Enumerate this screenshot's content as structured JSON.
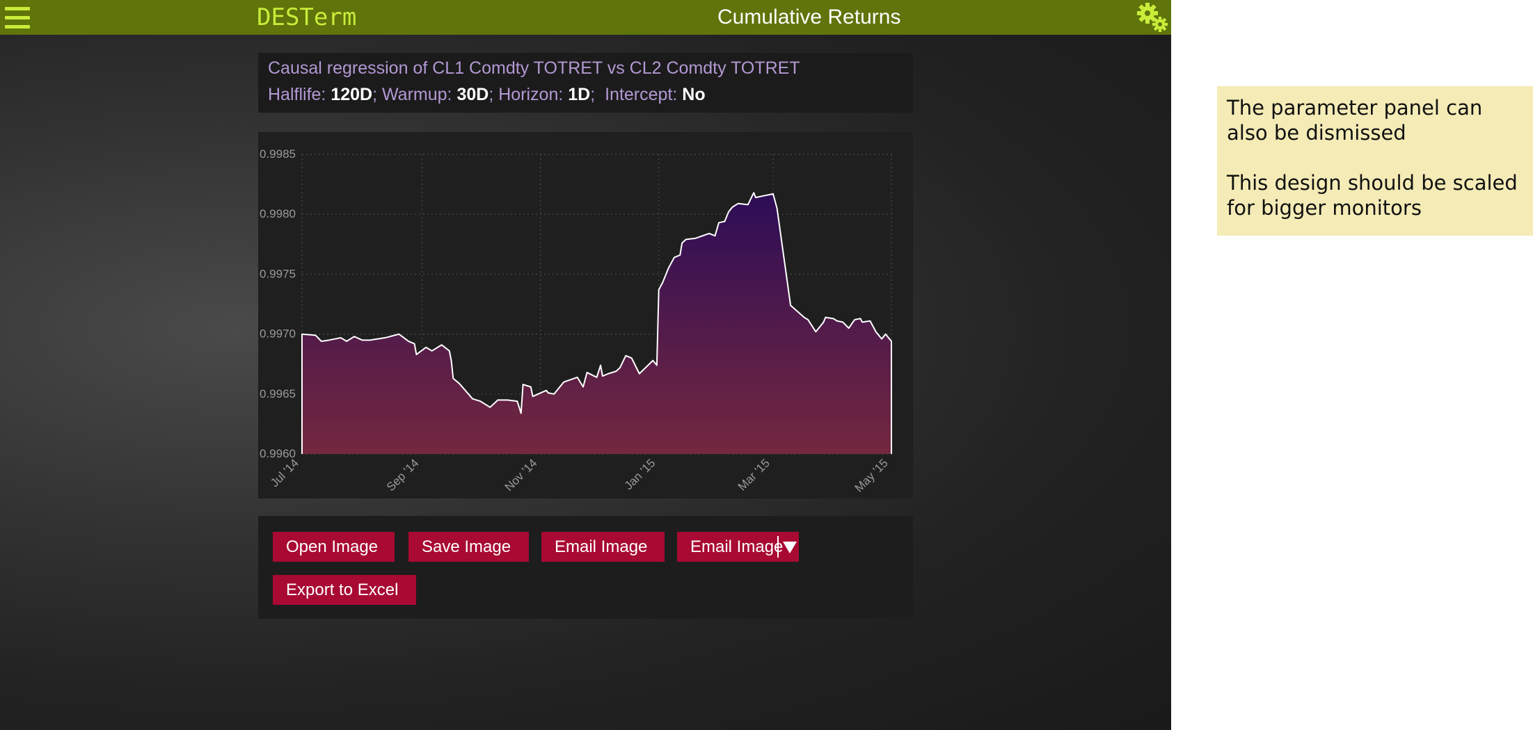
{
  "topbar": {
    "brand": "DESTerm",
    "title": "Cumulative Returns",
    "menu_icon": "hamburger-menu-icon",
    "settings_icon": "gears-icon",
    "background": "#5f740b",
    "accent": "#c9ec3a"
  },
  "params": {
    "title": "Causal regression of CL1 Comdty TOTRET vs CL2 Comdty TOTRET",
    "halflife_label": "Halflife:",
    "halflife_value": "120D",
    "warmup_label": "Warmup:",
    "warmup_value": "30D",
    "horizon_label": "Horizon:",
    "horizon_value": "1D",
    "intercept_label": "Intercept:",
    "intercept_value": "No",
    "separator": ";"
  },
  "chart_data": {
    "type": "area",
    "title": "",
    "xlabel": "",
    "ylabel": "",
    "ylim": [
      0.996,
      0.9985
    ],
    "xlim": [
      "2014-07-01",
      "2015-05-01"
    ],
    "ytick_labels": [
      "0.9960",
      "0.9965",
      "0.9970",
      "0.9975",
      "0.9980",
      "0.9985"
    ],
    "yticks": [
      0.996,
      0.9965,
      0.997,
      0.9975,
      0.998,
      0.9985
    ],
    "xtick_labels": [
      "Jul '14",
      "Sep '14",
      "Nov '14",
      "Jan '15",
      "Mar '15",
      "May '15"
    ],
    "xticks": [
      "2014-07-01",
      "2014-09-01",
      "2014-11-01",
      "2015-01-01",
      "2015-03-01",
      "2015-05-01"
    ],
    "grid": true,
    "colors": {
      "top": "#2d0d57",
      "bottom": "#74283f",
      "line": "#ffffff"
    },
    "x": [
      "2014-07-01",
      "2014-07-08",
      "2014-07-11",
      "2014-07-15",
      "2014-07-21",
      "2014-07-24",
      "2014-07-28",
      "2014-08-01",
      "2014-08-05",
      "2014-08-13",
      "2014-08-20",
      "2014-08-25",
      "2014-08-28",
      "2014-08-29",
      "2014-09-03",
      "2014-09-06",
      "2014-09-11",
      "2014-09-15",
      "2014-09-16",
      "2014-09-17",
      "2014-09-20",
      "2014-09-27",
      "2014-10-01",
      "2014-10-06",
      "2014-10-10",
      "2014-10-12",
      "2014-10-15",
      "2014-10-20",
      "2014-10-22",
      "2014-10-23",
      "2014-10-27",
      "2014-10-28",
      "2014-11-04",
      "2014-11-05",
      "2014-11-08",
      "2014-11-13",
      "2014-11-20",
      "2014-11-23",
      "2014-11-25",
      "2014-11-30",
      "2014-12-02",
      "2014-12-03",
      "2014-12-06",
      "2014-12-10",
      "2014-12-12",
      "2014-12-15",
      "2014-12-18",
      "2014-12-22",
      "2014-12-29",
      "2014-12-31",
      "2015-01-01",
      "2015-01-03",
      "2015-01-06",
      "2015-01-09",
      "2015-01-12",
      "2015-01-13",
      "2015-01-15",
      "2015-01-20",
      "2015-01-27",
      "2015-01-30",
      "2015-02-01",
      "2015-02-04",
      "2015-02-06",
      "2015-02-08",
      "2015-02-11",
      "2015-02-16",
      "2015-02-19",
      "2015-02-20",
      "2015-02-23",
      "2015-03-01",
      "2015-03-03",
      "2015-03-10",
      "2015-03-17",
      "2015-03-19",
      "2015-03-23",
      "2015-03-27",
      "2015-03-28",
      "2015-04-01",
      "2015-04-03",
      "2015-04-06",
      "2015-04-09",
      "2015-04-12",
      "2015-04-15",
      "2015-04-16",
      "2015-04-20",
      "2015-04-23",
      "2015-04-26",
      "2015-04-28",
      "2015-05-01"
    ],
    "values": [
      0.997,
      0.99699,
      0.99694,
      0.99695,
      0.99697,
      0.99694,
      0.99698,
      0.99695,
      0.99695,
      0.99697,
      0.997,
      0.99694,
      0.99692,
      0.99683,
      0.99689,
      0.99686,
      0.99691,
      0.99686,
      0.99678,
      0.99663,
      0.99659,
      0.99646,
      0.99644,
      0.99639,
      0.99645,
      0.99645,
      0.99645,
      0.99644,
      0.99634,
      0.99658,
      0.99656,
      0.99648,
      0.99653,
      0.99651,
      0.9965,
      0.9966,
      0.99664,
      0.99656,
      0.99668,
      0.99664,
      0.99674,
      0.99665,
      0.99667,
      0.99669,
      0.99672,
      0.99682,
      0.9968,
      0.99667,
      0.99678,
      0.99674,
      0.99737,
      0.99743,
      0.99755,
      0.99764,
      0.99766,
      0.99776,
      0.99779,
      0.9978,
      0.99784,
      0.99782,
      0.99793,
      0.99794,
      0.99802,
      0.99806,
      0.99809,
      0.99808,
      0.99818,
      0.99814,
      0.99815,
      0.99817,
      0.99805,
      0.99724,
      0.99714,
      0.99712,
      0.99702,
      0.9971,
      0.99714,
      0.99713,
      0.99711,
      0.9971,
      0.99705,
      0.99712,
      0.99713,
      0.9971,
      0.99711,
      0.99702,
      0.99696,
      0.997,
      0.99694
    ]
  },
  "actions": {
    "open_image": "Open Image",
    "save_image": "Save Image",
    "email_image": "Email Image",
    "email_image_menu": "Email Image",
    "email_dropdown_icon": "triangle-down-icon",
    "export_excel": "Export to Excel",
    "button_color": "#a80a33"
  },
  "note": {
    "line1": "The parameter panel can also be dismissed",
    "line2": "This design should be scaled for bigger monitors",
    "background": "#f4ebb6"
  }
}
